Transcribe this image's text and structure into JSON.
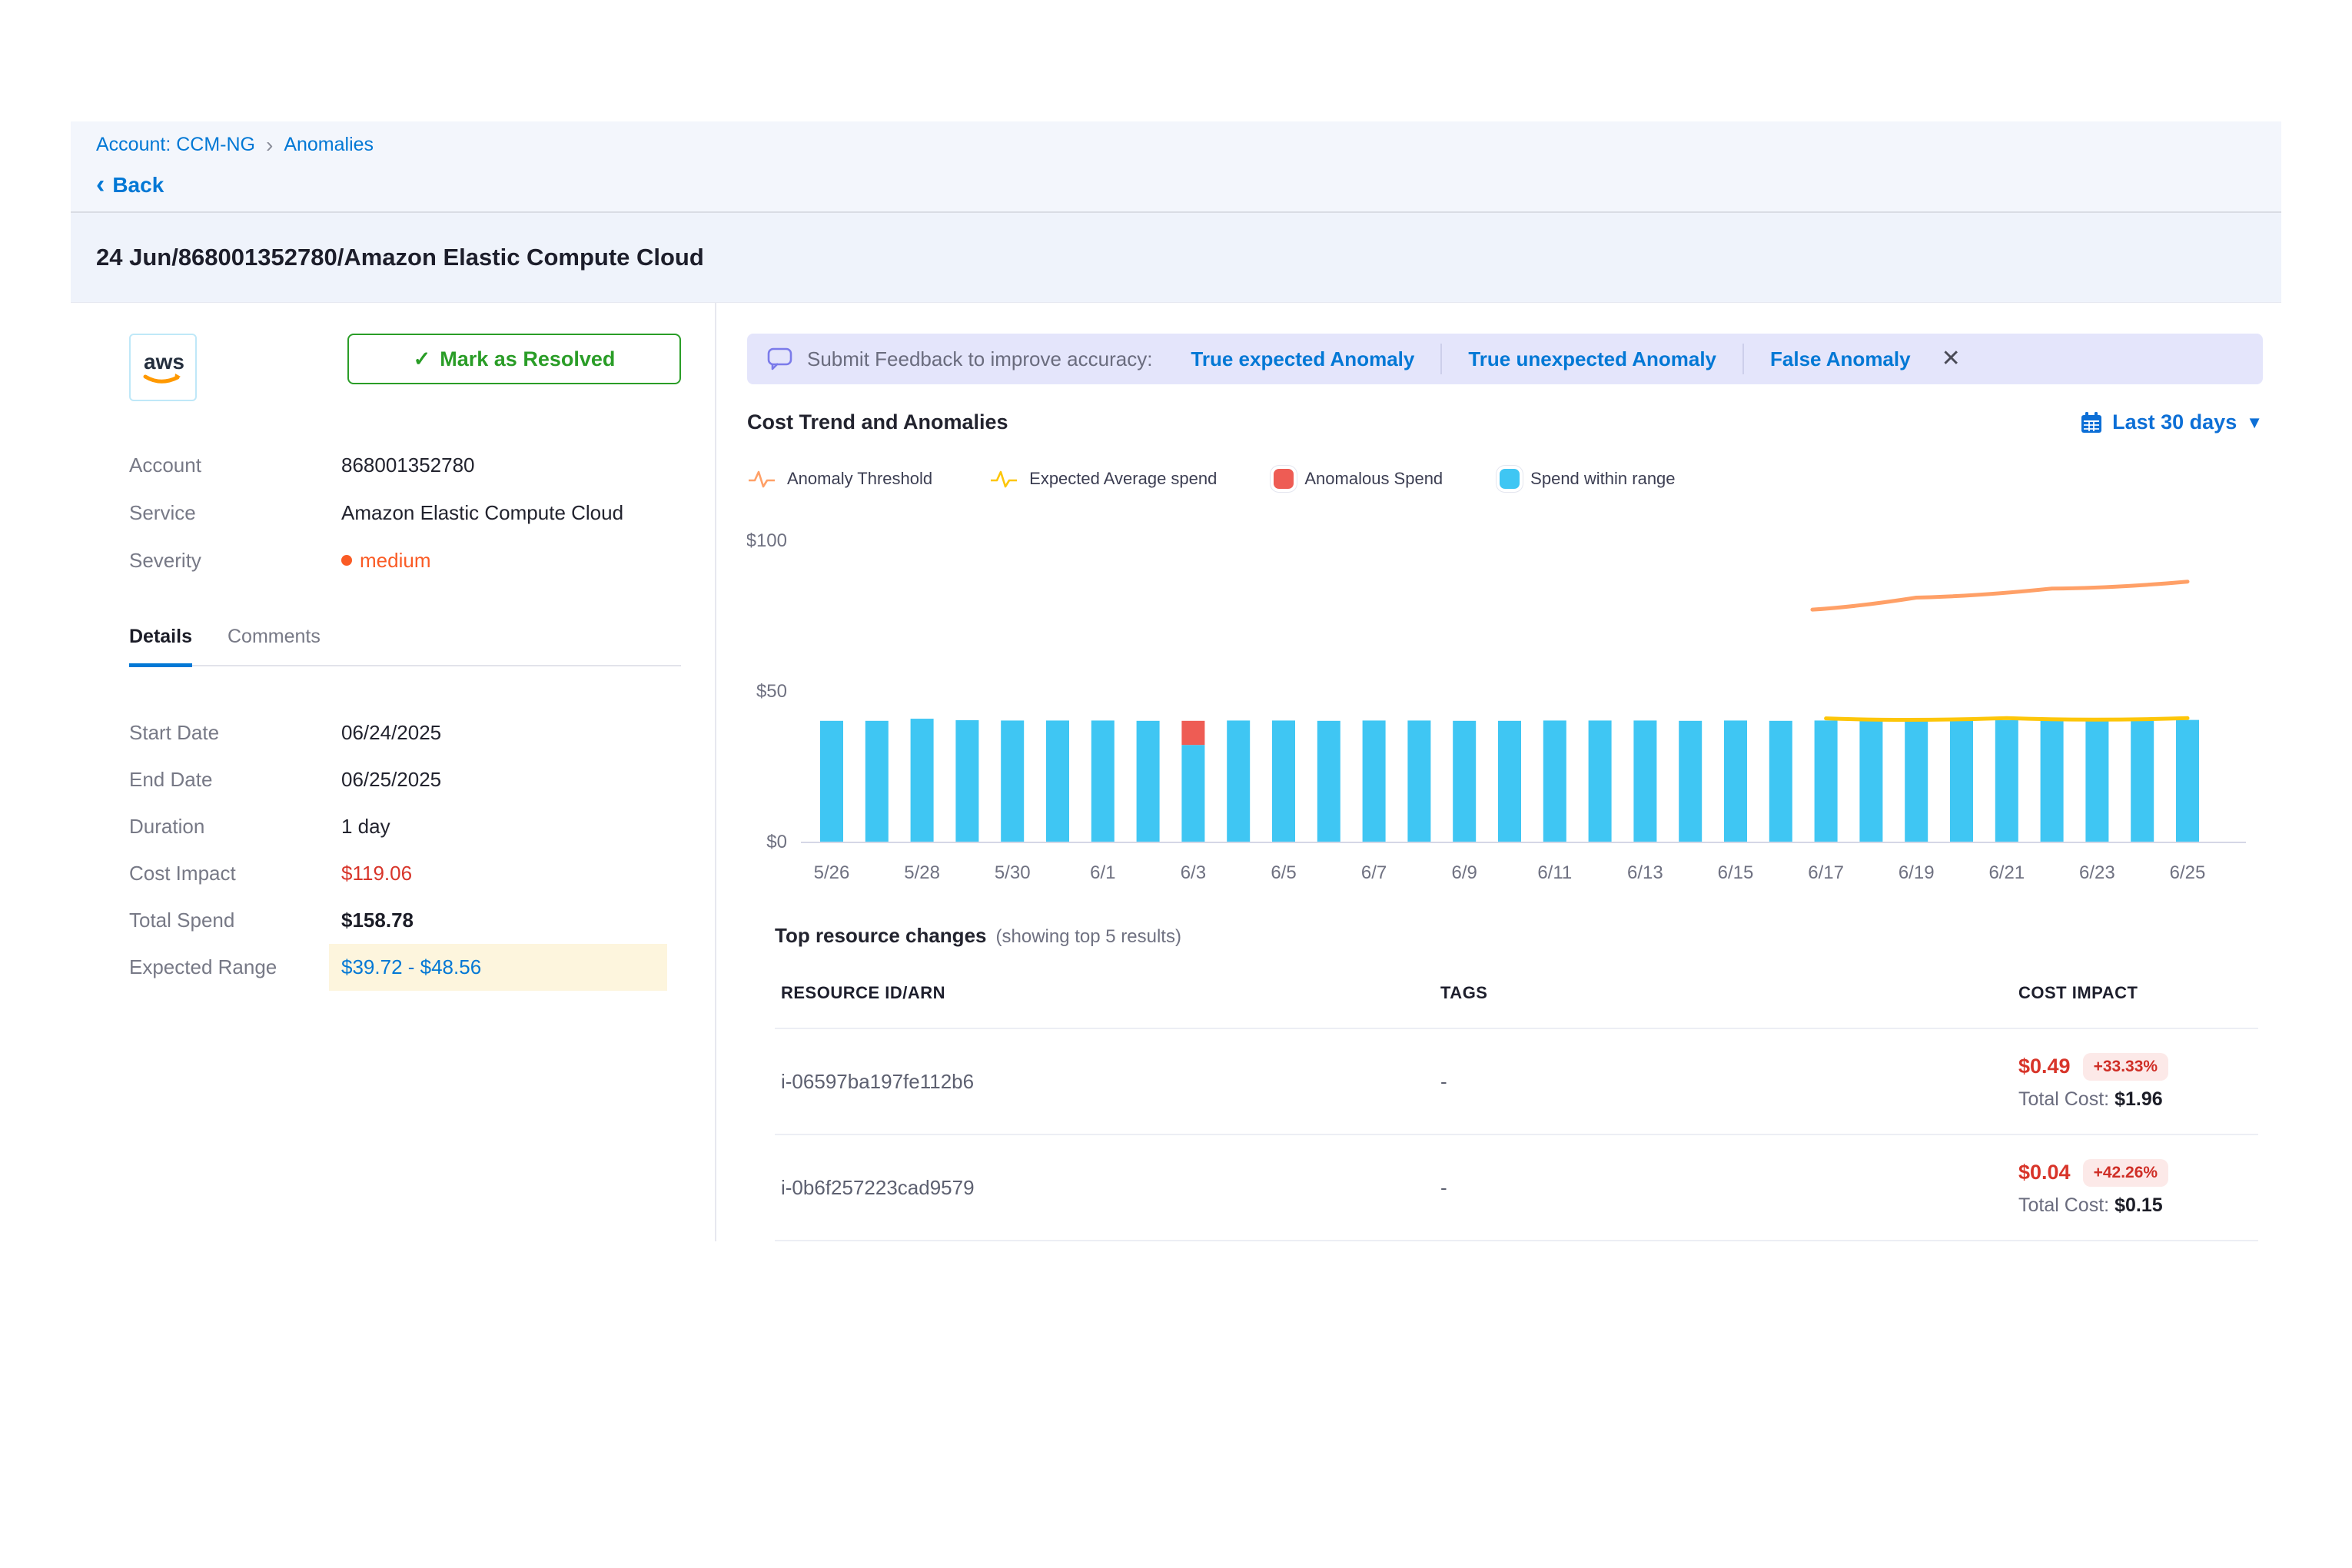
{
  "breadcrumb": {
    "account": "Account: CCM-NG",
    "section": "Anomalies"
  },
  "back_label": "Back",
  "page_title": "24 Jun/868001352780/Amazon Elastic Compute Cloud",
  "summary": {
    "provider": "aws",
    "resolve_label": "Mark as Resolved",
    "account_label": "Account",
    "account_value": "868001352780",
    "service_label": "Service",
    "service_value": "Amazon Elastic Compute Cloud",
    "severity_label": "Severity",
    "severity_value": "medium",
    "severity_color": "#fa5b25"
  },
  "tabs": {
    "details": "Details",
    "comments": "Comments"
  },
  "details": {
    "start_date_label": "Start Date",
    "start_date": "06/24/2025",
    "end_date_label": "End Date",
    "end_date": "06/25/2025",
    "duration_label": "Duration",
    "duration": "1 day",
    "cost_impact_label": "Cost Impact",
    "cost_impact": "$119.06",
    "total_spend_label": "Total Spend",
    "total_spend": "$158.78",
    "expected_range_label": "Expected Range",
    "expected_range": "$39.72 - $48.56"
  },
  "feedback": {
    "prompt": "Submit Feedback to improve accuracy:",
    "options": [
      "True expected Anomaly",
      "True unexpected Anomaly",
      "False Anomaly"
    ],
    "accent": "#0278d5",
    "background": "#e4e5fb"
  },
  "chart_header": {
    "title": "Cost Trend and Anomalies",
    "range_label": "Last 30 days"
  },
  "legend": {
    "items": [
      {
        "label": "Anomaly Threshold",
        "type": "line",
        "color": "#ffa067"
      },
      {
        "label": "Expected Average spend",
        "type": "line",
        "color": "#fdc609"
      },
      {
        "label": "Anomalous Spend",
        "type": "swatch",
        "color": "#ee5c54"
      },
      {
        "label": "Spend within range",
        "type": "swatch",
        "color": "#3fc6f3"
      }
    ]
  },
  "chart_data": {
    "type": "bar",
    "title": "Cost Trend and Anomalies",
    "xlabel": "",
    "ylabel": "",
    "ylim": [
      0,
      100
    ],
    "y_ticks": [
      {
        "value": 0,
        "label": "$0"
      },
      {
        "value": 50,
        "label": "$50"
      },
      {
        "value": 100,
        "label": "$100"
      }
    ],
    "categories": [
      "5/26",
      "5/27",
      "5/28",
      "5/29",
      "5/30",
      "5/31",
      "6/1",
      "6/2",
      "6/3",
      "6/4",
      "6/5",
      "6/6",
      "6/7",
      "6/8",
      "6/9",
      "6/10",
      "6/11",
      "6/12",
      "6/13",
      "6/14",
      "6/15",
      "6/16",
      "6/17",
      "6/18",
      "6/19",
      "6/20",
      "6/21",
      "6/22",
      "6/23",
      "6/24",
      "6/25"
    ],
    "x_tick_every": 2,
    "series": [
      {
        "name": "Spend within range",
        "kind": "bar",
        "color": "#3fc6f3",
        "values": [
          40.1,
          40.1,
          40.8,
          40.3,
          40.2,
          40.2,
          40.2,
          40.1,
          32.1,
          40.2,
          40.2,
          40.1,
          40.2,
          40.2,
          40.1,
          40.1,
          40.2,
          40.2,
          40.2,
          40.1,
          40.2,
          40.1,
          40.2,
          40.3,
          40.3,
          40.3,
          40.3,
          40.4,
          40.4,
          40.3,
          40.4
        ]
      },
      {
        "name": "Anomalous Spend",
        "kind": "bar-stacked",
        "color": "#ee5c54",
        "values": [
          0,
          0,
          0,
          0,
          0,
          0,
          0,
          0,
          8.0,
          0,
          0,
          0,
          0,
          0,
          0,
          0,
          0,
          0,
          0,
          0,
          0,
          0,
          0,
          0,
          0,
          0,
          0,
          0,
          0,
          0,
          0
        ]
      },
      {
        "name": "Expected Average spend",
        "kind": "line",
        "color": "#fdc609",
        "points": [
          [
            22,
            40.9
          ],
          [
            26,
            41.0
          ],
          [
            30,
            41.0
          ]
        ]
      },
      {
        "name": "Anomaly Threshold",
        "kind": "line",
        "color": "#ffa067",
        "points": [
          [
            21.7,
            77.0
          ],
          [
            24,
            81.0
          ],
          [
            27,
            84.0
          ],
          [
            30,
            86.3
          ]
        ]
      }
    ],
    "legend_position": "top",
    "grid": false
  },
  "resources": {
    "title": "Top resource changes",
    "subtitle": "(showing top 5 results)",
    "columns": [
      "RESOURCE ID/ARN",
      "TAGS",
      "COST IMPACT"
    ],
    "rows": [
      {
        "id": "i-06597ba197fe112b6",
        "tags": "-",
        "impact": "$0.49",
        "impact_pct": "+33.33%",
        "total_label": "Total Cost:",
        "total": "$1.96"
      },
      {
        "id": "i-0b6f257223cad9579",
        "tags": "-",
        "impact": "$0.04",
        "impact_pct": "+42.26%",
        "total_label": "Total Cost:",
        "total": "$0.15"
      }
    ]
  },
  "colors": {
    "link_blue": "#0278d5",
    "resolve_green": "#2a9d27",
    "cost_red": "#d8352a",
    "bar_blue": "#3fc6f3",
    "bar_red": "#ee5c54",
    "threshold_orange": "#ffa067",
    "expected_yellow": "#fdc609",
    "highlight_yellow_bg": "#fdf5dd",
    "axis_text": "#6f7181"
  }
}
